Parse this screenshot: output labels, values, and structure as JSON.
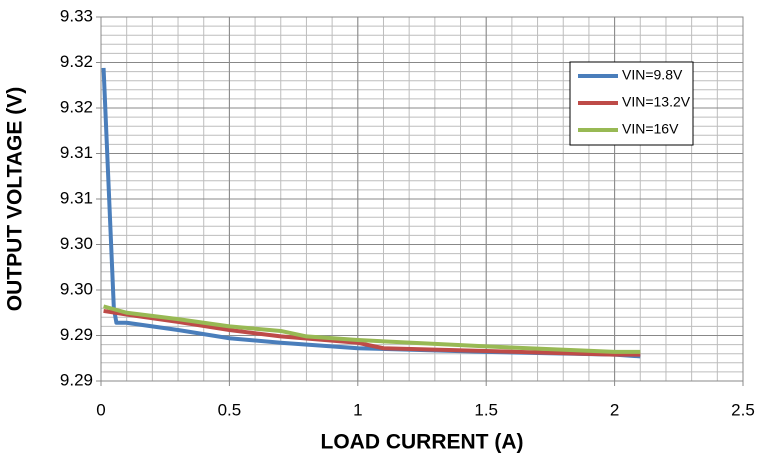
{
  "chart_data": {
    "type": "line",
    "xlabel": "LOAD CURRENT (A)",
    "ylabel": "OUTPUT VOLTAGE (V)",
    "xlim": [
      0,
      2.5
    ],
    "xticks": [
      0,
      0.5,
      1,
      1.5,
      2,
      2.5
    ],
    "ylim": [
      9.29,
      9.33
    ],
    "yticks": [
      9.29,
      {
        "value": 9.295,
        "label": "9.29"
      },
      {
        "value": 9.3,
        "label": "9.30"
      },
      {
        "value": 9.305,
        "label": "9.30"
      },
      9.31,
      {
        "value": 9.315,
        "label": "9.31"
      },
      9.32,
      {
        "value": 9.325,
        "label": "9.32"
      },
      9.33
    ],
    "grid": true,
    "minor_grid": true,
    "legend": "upper right",
    "series": [
      {
        "name": "VIN=9.8V",
        "color": "#4a7ebb",
        "x": [
          0.01,
          0.05,
          0.06,
          0.1,
          0.3,
          0.5,
          0.7,
          1.0,
          1.5,
          2.0,
          2.1
        ],
        "values": [
          9.3244,
          9.298,
          9.2964,
          9.2964,
          9.2956,
          9.2947,
          9.2942,
          9.2936,
          9.2932,
          9.2929,
          9.2927
        ]
      },
      {
        "name": "VIN=13.2V",
        "color": "#be4b48",
        "x": [
          0.01,
          0.1,
          0.3,
          0.5,
          0.7,
          1.0,
          1.1,
          1.5,
          2.0,
          2.1
        ],
        "values": [
          9.2977,
          9.2973,
          9.2965,
          9.2956,
          9.2949,
          9.2942,
          9.2936,
          9.2933,
          9.2929,
          9.2929
        ]
      },
      {
        "name": "VIN=16V",
        "color": "#98b954",
        "x": [
          0.01,
          0.1,
          0.3,
          0.5,
          0.7,
          0.8,
          1.0,
          1.5,
          2.0,
          2.1
        ],
        "values": [
          9.2982,
          9.2975,
          9.2968,
          9.296,
          9.2955,
          9.2949,
          9.2945,
          9.2938,
          9.2932,
          9.2932
        ]
      }
    ]
  }
}
